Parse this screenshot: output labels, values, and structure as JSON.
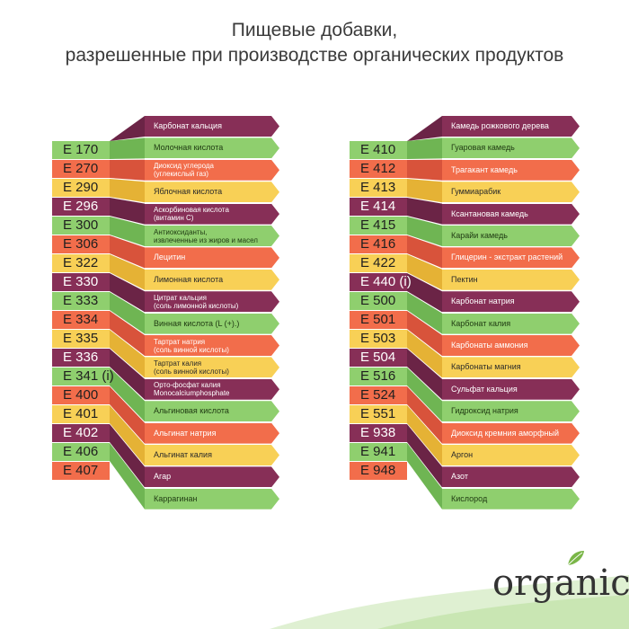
{
  "title": {
    "line1": "Пищевые добавки,",
    "line2": "разрешенные при производстве органических продуктов"
  },
  "colors": {
    "purple": "#872f57",
    "green": "#8fcf6e",
    "orange": "#f26d4b",
    "yellow": "#f8d056",
    "purple_dark": "#6b2446",
    "green_dark": "#6fb553",
    "orange_dark": "#d8533b",
    "yellow_dark": "#e5b235"
  },
  "left": {
    "codes": [
      "E 170",
      "E 270",
      "E 290",
      "E 296",
      "E 300",
      "E 306",
      "E 322",
      "E 330",
      "E 333",
      "E 334",
      "E 335",
      "E 336",
      "E 341 (i)",
      "E 400",
      "E 401",
      "E 402",
      "E 406",
      "E 407"
    ],
    "items": [
      {
        "lines": [
          "Карбонат кальция"
        ]
      },
      {
        "lines": [
          "Молочная кислота"
        ]
      },
      {
        "lines": [
          "Диоксид углерода",
          "(углекислый газ)"
        ]
      },
      {
        "lines": [
          "Яблочная кислота"
        ]
      },
      {
        "lines": [
          "Аскорбиновая кислота",
          "(витамин С)"
        ]
      },
      {
        "lines": [
          "Антиоксиданты,",
          "извлеченные из жиров и масел"
        ]
      },
      {
        "lines": [
          "Лецитин"
        ]
      },
      {
        "lines": [
          "Лимонная кислота"
        ]
      },
      {
        "lines": [
          "Цитрат кальция",
          "(соль лимонной кислоты)"
        ]
      },
      {
        "lines": [
          "Винная кислота (L (+).)"
        ]
      },
      {
        "lines": [
          "Тартрат натрия",
          "(соль винной кислоты)"
        ]
      },
      {
        "lines": [
          "Тартрат калия",
          "(соль винной кислоты)"
        ]
      },
      {
        "lines": [
          "Орто-фосфат калия",
          "Monocalciumphosphate"
        ]
      },
      {
        "lines": [
          "Альгиновая кислота"
        ]
      },
      {
        "lines": [
          "Альгинат натрия"
        ]
      },
      {
        "lines": [
          "Альгинат калия"
        ]
      },
      {
        "lines": [
          "Агар"
        ]
      },
      {
        "lines": [
          "Каррагинан"
        ]
      }
    ]
  },
  "right": {
    "codes": [
      "E 410",
      "E 412",
      "E 413",
      "E 414",
      "E 415",
      "E 416",
      "E 422",
      "E 440 (i)",
      "E 500",
      "E 501",
      "E 503",
      "E 504",
      "E 516",
      "E 524",
      "E 551",
      "E 938",
      "E 941",
      "E 948"
    ],
    "items": [
      {
        "lines": [
          "Камедь рожкового дерева"
        ]
      },
      {
        "lines": [
          "Гуаровая камедь"
        ]
      },
      {
        "lines": [
          "Трагакант камедь"
        ]
      },
      {
        "lines": [
          "Гуммиарабик"
        ]
      },
      {
        "lines": [
          "Ксантановая камедь"
        ]
      },
      {
        "lines": [
          "Карайи камедь"
        ]
      },
      {
        "lines": [
          "Глицерин - экстракт растений"
        ]
      },
      {
        "lines": [
          "Пектин"
        ]
      },
      {
        "lines": [
          "Карбонат натрия"
        ]
      },
      {
        "lines": [
          "Карбонат калия"
        ]
      },
      {
        "lines": [
          "Карбонаты аммония"
        ]
      },
      {
        "lines": [
          "Карбонаты магния"
        ]
      },
      {
        "lines": [
          "Сульфат кальция"
        ]
      },
      {
        "lines": [
          "Гидроксид натрия"
        ]
      },
      {
        "lines": [
          "Диоксид кремния аморфный"
        ]
      },
      {
        "lines": [
          "Аргон"
        ]
      },
      {
        "lines": [
          "Азот"
        ]
      },
      {
        "lines": [
          "Кислород"
        ]
      }
    ]
  },
  "color_cycle": [
    "purple",
    "green",
    "orange",
    "yellow"
  ],
  "logo": {
    "text": "organic"
  }
}
